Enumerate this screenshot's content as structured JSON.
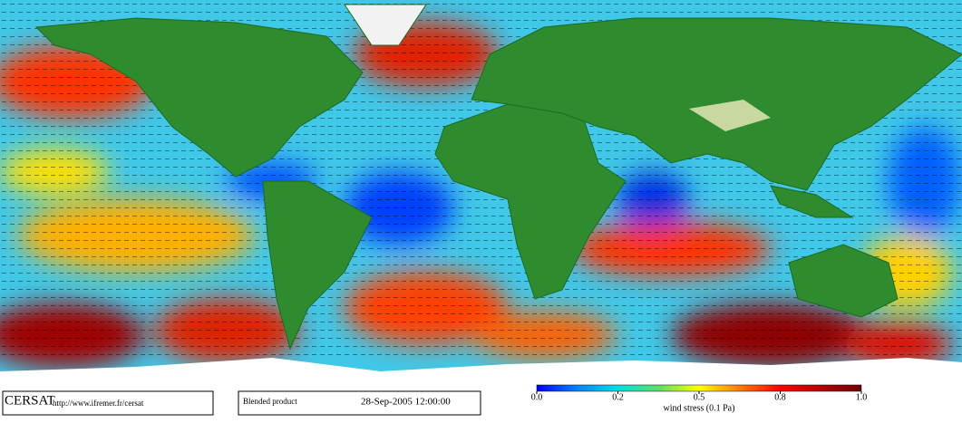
{
  "footer": {
    "logo": "CERSAT",
    "url": "http://www.ifremer.fr/cersat",
    "product": "Blended product",
    "date": "28-Sep-2005 12:00:00"
  },
  "colorbar": {
    "ticks": [
      {
        "value": 0,
        "label": "0.0"
      },
      0.2,
      0.5,
      0.8,
      {
        "value": 1,
        "label": "1.0"
      }
    ],
    "label": "wind stress (0.1 Pa)"
  }
}
